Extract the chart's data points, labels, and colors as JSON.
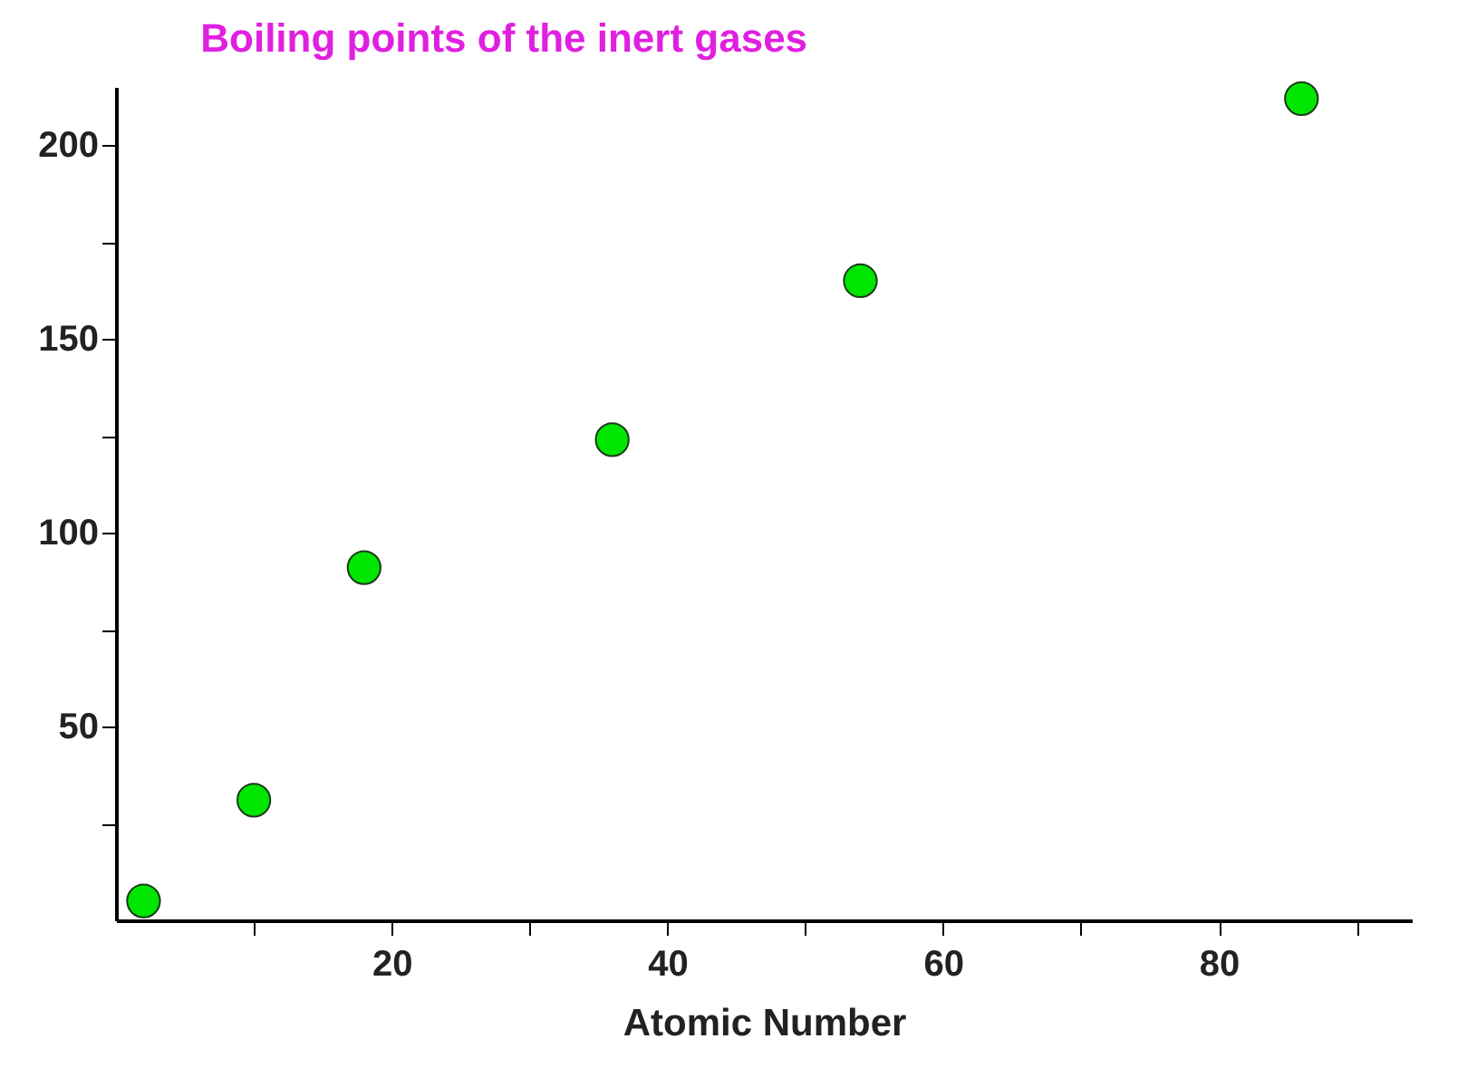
{
  "chart_data": {
    "type": "scatter",
    "title": "Boiling points of the inert gases",
    "xlabel": "Atomic Number",
    "x": [
      2,
      10,
      18,
      36,
      54,
      86
    ],
    "series": [
      {
        "color": "#00e600",
        "values": [
          5,
          31,
          91,
          124,
          165,
          212
        ]
      }
    ],
    "xlim": [
      0,
      94
    ],
    "xticks": [
      {
        "value": 10,
        "label": null
      },
      20,
      {
        "value": 30,
        "label": null
      },
      40,
      {
        "value": 50,
        "label": null
      },
      60,
      {
        "value": 70,
        "label": null
      },
      80,
      {
        "value": 90,
        "label": null
      }
    ],
    "ylim": [
      0,
      215
    ],
    "yticks": [
      {
        "value": 25,
        "label": null
      },
      50,
      {
        "value": 75,
        "label": null
      },
      100,
      {
        "value": 125,
        "label": null
      },
      150,
      {
        "value": 175,
        "label": null
      },
      200
    ],
    "grid": false,
    "legend": false,
    "marker": "circle"
  }
}
